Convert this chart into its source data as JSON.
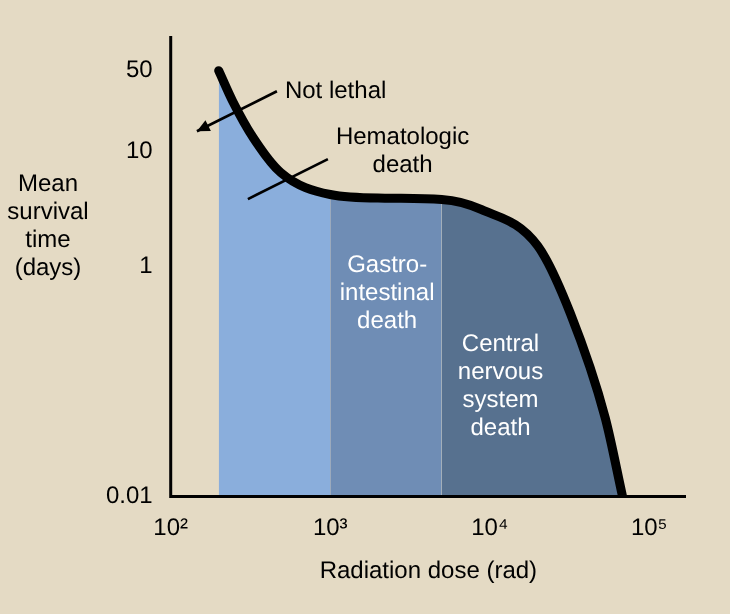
{
  "chart_data": {
    "type": "area",
    "xlabel": "Radiation dose (rad)",
    "ylabel": "Mean survival time (days)",
    "log": "xy",
    "legend": false,
    "marker": "none",
    "line_style": "solid",
    "xlim": [
      100,
      170000
    ],
    "xticks": [
      {
        "value": 100,
        "label": "10²"
      },
      {
        "value": 1000,
        "label": "10³"
      },
      {
        "value": 10000,
        "label": "10⁴"
      },
      {
        "value": 100000,
        "label": "10⁵"
      }
    ],
    "ylim": [
      0.01,
      100
    ],
    "yticks": [
      50,
      10,
      1,
      0.01
    ],
    "series": [
      {
        "color": "#8aaedc",
        "x": [
          200,
          245,
          330,
          490,
          1000
        ],
        "values": [
          50,
          27,
          13,
          6.5,
          4.2
        ]
      },
      {
        "color": "#6f8db5",
        "x": [
          1000,
          2200,
          5000
        ],
        "values": [
          4.2,
          3.9,
          3.8
        ]
      },
      {
        "color": "#57718f",
        "x": [
          5000,
          8900,
          20000,
          32000,
          53000,
          68000
        ],
        "values": [
          3.8,
          3.1,
          1.5,
          0.39,
          0.048,
          0.01
        ]
      },
      {
        "type": "line",
        "color": "#000000",
        "x": [
          200,
          245,
          330,
          490,
          1000,
          2200,
          5000,
          8900,
          20000,
          32000,
          53000,
          68000
        ],
        "values": [
          50,
          27,
          13,
          6.5,
          4.2,
          3.9,
          3.8,
          3.1,
          1.5,
          0.39,
          0.048,
          0.01
        ]
      }
    ],
    "annotations": [
      "Not lethal",
      "Hematologic death",
      "Gastro-intestinal death",
      "Central nervous system death"
    ]
  }
}
